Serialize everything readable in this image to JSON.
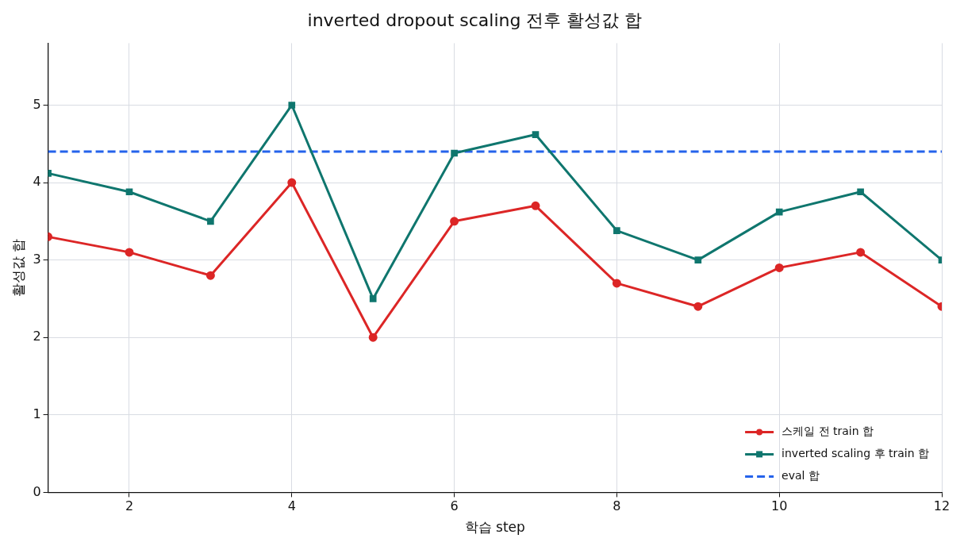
{
  "chart_data": {
    "type": "line",
    "title": "inverted dropout scaling 전후 활성값 합",
    "xlabel": "학습 step",
    "ylabel": "활성값 합",
    "x": [
      1,
      2,
      3,
      4,
      5,
      6,
      7,
      8,
      9,
      10,
      11,
      12
    ],
    "series": [
      {
        "name": "스케일 전 train 합",
        "color": "#dc2626",
        "marker": "circle",
        "line_style": "solid",
        "values": [
          3.3,
          3.1,
          2.8,
          4.0,
          2.0,
          3.5,
          3.7,
          2.7,
          2.4,
          2.9,
          3.1,
          2.4
        ]
      },
      {
        "name": "inverted scaling 후 train 합",
        "color": "#0f766e",
        "marker": "square",
        "line_style": "solid",
        "values": [
          4.12,
          3.88,
          3.5,
          5.0,
          2.5,
          4.38,
          4.62,
          3.38,
          3.0,
          3.62,
          3.88,
          3.0
        ]
      },
      {
        "name": "eval 합",
        "color": "#2563eb",
        "marker": "none",
        "line_style": "dashed",
        "x": [
          1,
          12
        ],
        "values": [
          4.4,
          4.4
        ]
      }
    ],
    "xlim": [
      1,
      12
    ],
    "xticks": [
      2,
      4,
      6,
      8,
      10,
      12
    ],
    "ylim": [
      0,
      5.8
    ],
    "yticks": [
      0,
      1,
      2,
      3,
      4,
      5
    ],
    "grid": true,
    "legend": "bottom right"
  }
}
